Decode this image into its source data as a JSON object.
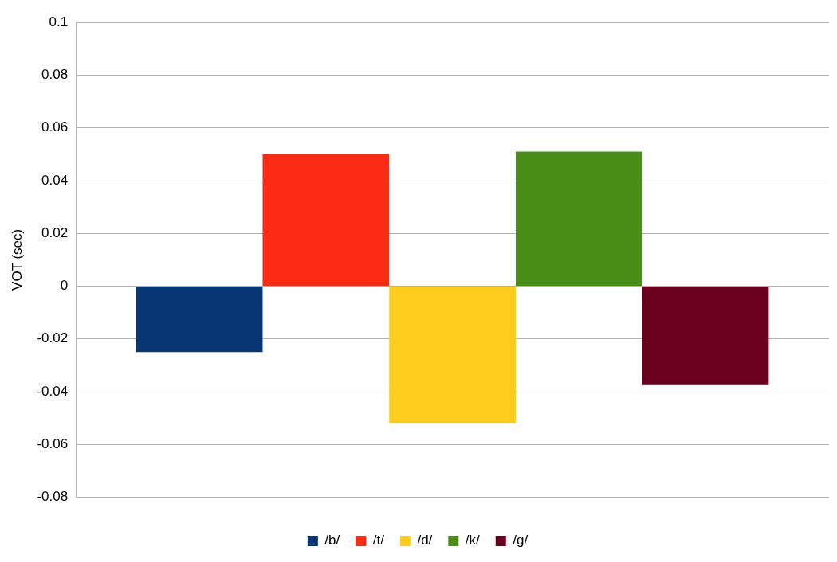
{
  "chart_data": {
    "type": "bar",
    "ylabel": "VOT (sec)",
    "categories": [
      null
    ],
    "series": [
      {
        "name": "/b/",
        "color": "#073674",
        "values": [
          -0.025
        ]
      },
      {
        "name": "/t/",
        "color": "#fc2b13",
        "values": [
          0.05
        ]
      },
      {
        "name": "/d/",
        "color": "#fdcc1c",
        "values": [
          -0.052
        ]
      },
      {
        "name": "/k/",
        "color": "#4b8e17",
        "values": [
          0.051
        ]
      },
      {
        "name": "/g/",
        "color": "#6b001f",
        "values": [
          -0.0375
        ]
      }
    ],
    "ylim": [
      -0.08,
      0.1
    ],
    "yticks": [
      -0.08,
      -0.06,
      -0.04,
      -0.02,
      0,
      0.02,
      0.04,
      0.06,
      0.08,
      0.1
    ],
    "grid": "y",
    "legend": "bottom"
  }
}
